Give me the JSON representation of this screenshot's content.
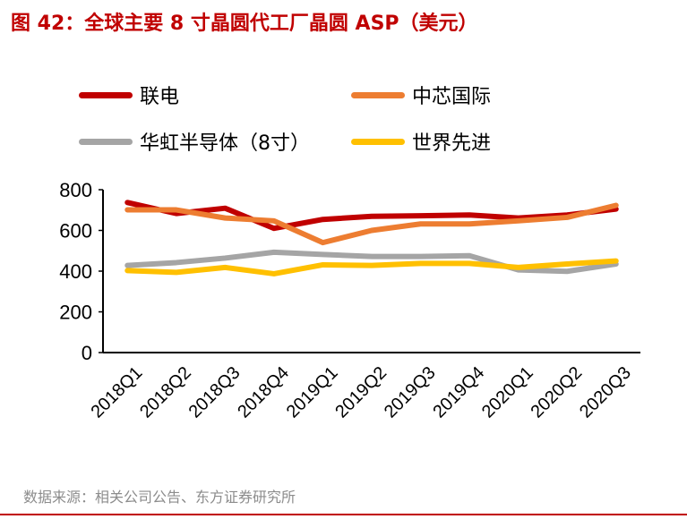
{
  "title": "图 42：全球主要 8 寸晶圆代工厂晶圆 ASP（美元）",
  "source": "数据来源：相关公司公告、东方证券研究所",
  "chart_data": {
    "type": "line",
    "title": "",
    "xlabel": "",
    "ylabel": "",
    "ylim": [
      0,
      800
    ],
    "yticks": [
      0,
      200,
      400,
      600,
      800
    ],
    "grid": false,
    "legend_placement": "top",
    "categories": [
      "2018Q1",
      "2018Q2",
      "2018Q3",
      "2018Q4",
      "2019Q1",
      "2019Q2",
      "2019Q3",
      "2019Q4",
      "2020Q1",
      "2020Q2",
      "2020Q3"
    ],
    "series": [
      {
        "name": "联电",
        "color": "#c00000",
        "values": [
          737,
          683,
          709,
          610,
          654,
          669,
          672,
          676,
          661,
          676,
          705
        ]
      },
      {
        "name": "中芯国际",
        "color": "#ed7d31",
        "values": [
          701,
          701,
          661,
          647,
          540,
          600,
          632,
          632,
          647,
          664,
          723
        ]
      },
      {
        "name": "华虹半导体（8寸）",
        "color": "#a5a5a5",
        "values": [
          428,
          442,
          464,
          493,
          482,
          472,
          472,
          476,
          406,
          399,
          435
        ]
      },
      {
        "name": "世界先进",
        "color": "#ffc000",
        "values": [
          403,
          394,
          418,
          387,
          431,
          428,
          438,
          438,
          418,
          435,
          450
        ]
      }
    ]
  }
}
